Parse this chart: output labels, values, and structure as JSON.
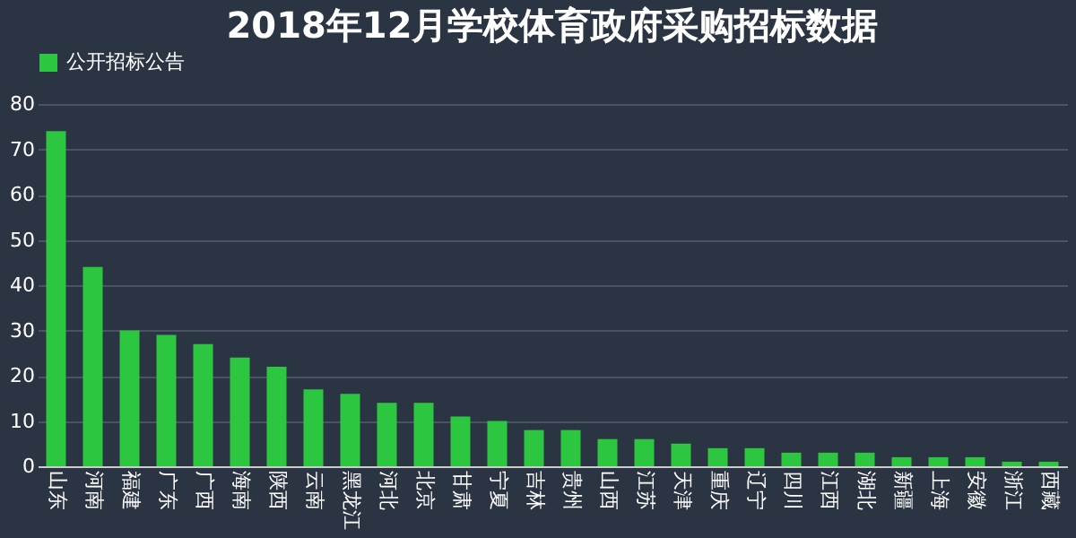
{
  "chart_data": {
    "type": "bar",
    "title": "2018年12月学校体育政府采购招标数据",
    "categories": [
      "山东",
      "河南",
      "福建",
      "广东",
      "广西",
      "海南",
      "陕西",
      "云南",
      "黑龙江",
      "河北",
      "北京",
      "甘肃",
      "宁夏",
      "吉林",
      "贵州",
      "山西",
      "江苏",
      "天津",
      "重庆",
      "辽宁",
      "四川",
      "江西",
      "湖北",
      "新疆",
      "上海",
      "安徽",
      "浙江",
      "西藏"
    ],
    "series": [
      {
        "name": "公开招标公告",
        "color": "#2cc640",
        "values": [
          74,
          44,
          30,
          29,
          27,
          24,
          22,
          17,
          16,
          14,
          14,
          11,
          10,
          8,
          8,
          6,
          6,
          5,
          4,
          4,
          3,
          3,
          3,
          2,
          2,
          2,
          1,
          1
        ]
      }
    ],
    "ylim": [
      0,
      80
    ],
    "yticks": [
      0,
      10,
      20,
      30,
      40,
      50,
      60,
      70,
      80
    ],
    "grid": "y",
    "legend": "top"
  }
}
